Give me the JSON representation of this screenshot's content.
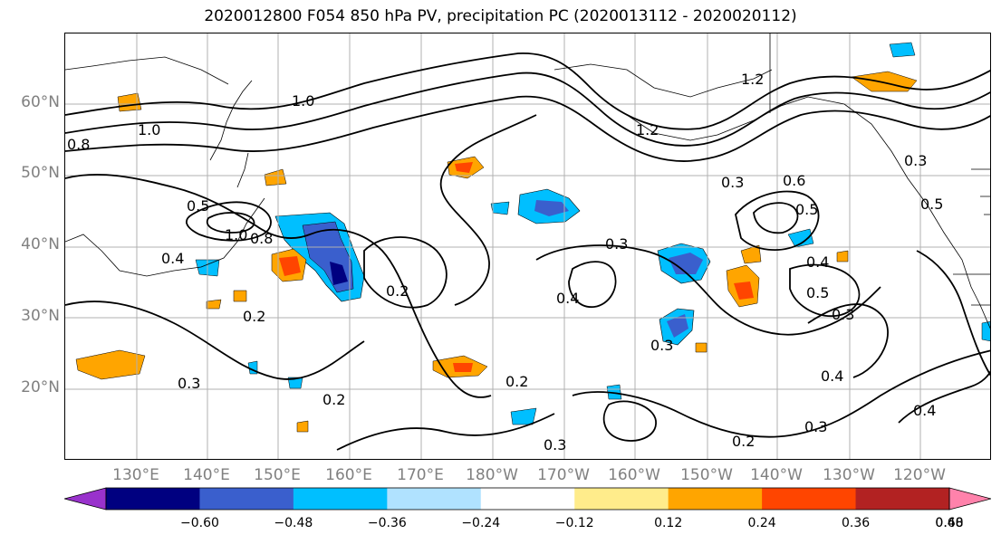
{
  "title": "2020012800 F054 850 hPa PV, precipitation PC (2020013112 - 2020020112)",
  "lat_labels": [
    "60°N",
    "50°N",
    "40°N",
    "30°N",
    "20°N"
  ],
  "lon_labels": [
    "130°E",
    "140°E",
    "150°E",
    "160°E",
    "170°E",
    "180°W",
    "170°W",
    "160°W",
    "150°W",
    "140°W",
    "130°W",
    "120°W"
  ],
  "contour_labels": [
    "0.8",
    "1.0",
    "1.0",
    "0.5",
    "1.0",
    "0.8",
    "0.4",
    "0.2",
    "0.3",
    "0.2",
    "0.2",
    "0.3",
    "0.3",
    "0.4",
    "0.3",
    "0.6",
    "0.5",
    "0.4",
    "0.5",
    "0.3",
    "0.4",
    "0.3",
    "0.2",
    "0.3",
    "1.2",
    "0.3",
    "0.5",
    "0.4",
    "0.2",
    "1.2"
  ],
  "colorbar": {
    "ticks": [
      "−0.60",
      "−0.48",
      "−0.36",
      "−0.24",
      "−0.12",
      "0.12",
      "0.24",
      "0.36",
      "0.48",
      "0.60"
    ],
    "colors": [
      "#9932cc",
      "#000080",
      "#3a5fcd",
      "#00bfff",
      "#b0e2ff",
      "#ffffff",
      "#ffec8b",
      "#ffa500",
      "#ff4500",
      "#b22222",
      "#ff82ab"
    ]
  },
  "colors": {
    "land_border": "#000000",
    "grid": "#b0b0b0",
    "contour": "#000000",
    "axis_label": "#808080"
  }
}
